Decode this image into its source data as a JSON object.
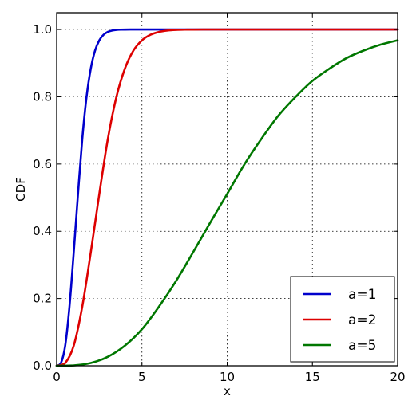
{
  "chart_data": {
    "type": "line",
    "title": "",
    "xlabel": "x",
    "ylabel": "CDF",
    "xlim": [
      0,
      20
    ],
    "ylim": [
      0,
      1.05
    ],
    "x_ticks": [
      0,
      5,
      10,
      15,
      20
    ],
    "y_ticks": [
      0.0,
      0.2,
      0.4,
      0.6,
      0.8,
      1.0
    ],
    "x_tick_labels": [
      "0",
      "5",
      "10",
      "15",
      "20"
    ],
    "y_tick_labels": [
      "0.0",
      "0.2",
      "0.4",
      "0.6",
      "0.8",
      "1.0"
    ],
    "grid": true,
    "legend_position": "bottom-right",
    "series": [
      {
        "name": "a=1",
        "color": "#0000cc",
        "x": [
          0,
          0.25,
          0.5,
          0.75,
          1.0,
          1.25,
          1.5,
          1.75,
          2.0,
          2.25,
          2.5,
          2.75,
          3.0,
          3.25,
          3.5,
          3.75,
          4.0,
          4.5,
          5.0,
          6.0,
          8.0,
          12.0,
          20.0
        ],
        "y": [
          0,
          0.0082,
          0.0598,
          0.176,
          0.3374,
          0.511,
          0.6743,
          0.799,
          0.8838,
          0.9374,
          0.9679,
          0.9845,
          0.9929,
          0.997,
          0.9988,
          0.9996,
          0.9999,
          1.0,
          1.0,
          1.0,
          1.0,
          1.0,
          1.0
        ]
      },
      {
        "name": "a=2",
        "color": "#dd0000",
        "x": [
          0,
          0.5,
          1.0,
          1.5,
          2.0,
          2.5,
          3.0,
          3.5,
          4.0,
          4.5,
          5.0,
          5.5,
          6.0,
          6.5,
          7.0,
          7.5,
          8.0,
          9.0,
          10.0,
          12.0,
          20.0
        ],
        "y": [
          0,
          0.0082,
          0.0598,
          0.176,
          0.3374,
          0.511,
          0.6743,
          0.799,
          0.8838,
          0.9374,
          0.9679,
          0.9845,
          0.9929,
          0.997,
          0.9988,
          0.9996,
          0.9999,
          1.0,
          1.0,
          1.0,
          1.0
        ]
      },
      {
        "name": "a=5",
        "color": "#007700",
        "x": [
          0,
          1,
          2,
          3,
          4,
          5,
          6,
          7,
          8,
          9,
          10,
          11,
          12,
          13,
          14,
          15,
          16,
          17,
          18,
          19,
          20
        ],
        "y": [
          0,
          0.001,
          0.0082,
          0.0268,
          0.0598,
          0.1087,
          0.176,
          0.2521,
          0.3374,
          0.4253,
          0.511,
          0.598,
          0.6743,
          0.7437,
          0.799,
          0.8473,
          0.8838,
          0.915,
          0.9374,
          0.9551,
          0.9679
        ]
      }
    ]
  }
}
